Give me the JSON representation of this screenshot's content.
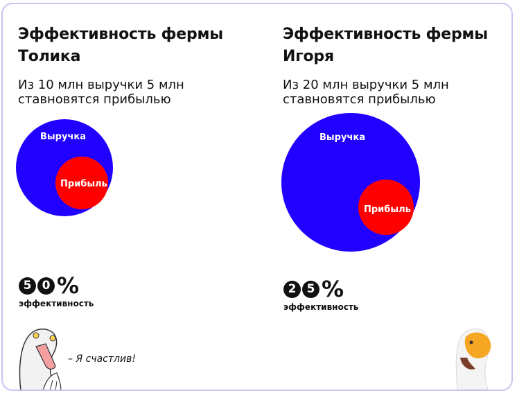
{
  "farms": [
    {
      "title_line1": "Эффективность фермы",
      "title_line2": "Толика",
      "subtitle_line1": "Из 10 млн выручки 5 млн",
      "subtitle_line2": "ставновятся прибылью",
      "revenue_label": "Выручка",
      "profit_label": "Прибыль",
      "revenue_mln": 10,
      "profit_mln": 5,
      "efficiency_digit1": "5",
      "efficiency_digit2": "0",
      "efficiency_percent": "%",
      "efficiency_label": "эффективность"
    },
    {
      "title_line1": "Эффективность фермы",
      "title_line2": "Игоря",
      "subtitle_line1": "Из 20 млн выручки 5 млн",
      "subtitle_line2": "ставновятся прибылью",
      "revenue_label": "Выручка",
      "profit_label": "Прибыль",
      "revenue_mln": 20,
      "profit_mln": 5,
      "efficiency_digit1": "2",
      "efficiency_digit2": "5",
      "efficiency_percent": "%",
      "efficiency_label": "эффективность"
    }
  ],
  "quote": "– Я счастлив!",
  "colors": {
    "revenue": "#2200ff",
    "profit": "#ff0000",
    "border": "#c9c5f2",
    "beak": "#f5a623"
  },
  "icons": {
    "left": "happy-goose-icon",
    "right": "goose-icon"
  }
}
